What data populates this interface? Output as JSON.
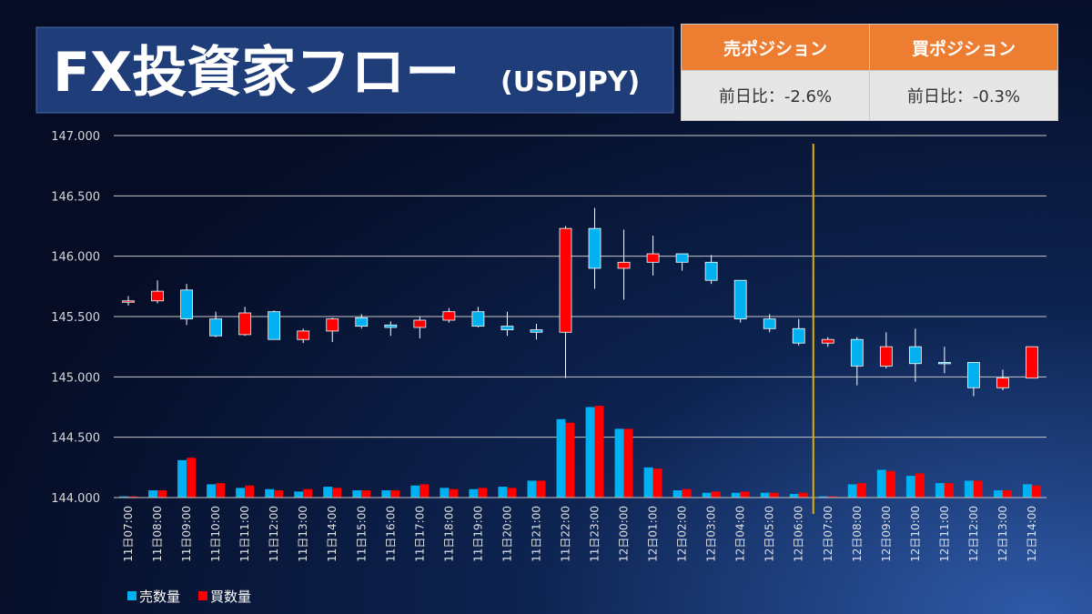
{
  "chart_data": {
    "type": "candlestick",
    "title": "FX投資家フロー",
    "subtitle": "(USDJPY)",
    "categories": [
      "11日07:00",
      "11日08:00",
      "11日09:00",
      "11日10:00",
      "11日11:00",
      "11日12:00",
      "11日13:00",
      "11日14:00",
      "11日15:00",
      "11日16:00",
      "11日17:00",
      "11日18:00",
      "11日19:00",
      "11日20:00",
      "11日21:00",
      "11日22:00",
      "11日23:00",
      "12日00:00",
      "12日01:00",
      "12日02:00",
      "12日03:00",
      "12日04:00",
      "12日05:00",
      "12日06:00",
      "12日07:00",
      "12日08:00",
      "12日09:00",
      "12日10:00",
      "12日11:00",
      "12日12:00",
      "12日13:00",
      "12日14:00"
    ],
    "candles": {
      "open": [
        145.62,
        145.63,
        145.72,
        145.48,
        145.35,
        145.54,
        145.31,
        145.38,
        145.49,
        145.43,
        145.41,
        145.47,
        145.54,
        145.42,
        145.39,
        145.37,
        146.23,
        145.9,
        145.95,
        146.02,
        145.95,
        145.8,
        145.48,
        145.4,
        145.28,
        145.31,
        145.09,
        145.25,
        145.12,
        145.12,
        144.91,
        144.99
      ],
      "close": [
        145.63,
        145.71,
        145.48,
        145.34,
        145.53,
        145.31,
        145.38,
        145.48,
        145.42,
        145.41,
        145.47,
        145.54,
        145.42,
        145.39,
        145.37,
        146.23,
        145.9,
        145.95,
        146.02,
        145.95,
        145.8,
        145.48,
        145.4,
        145.28,
        145.31,
        145.09,
        145.25,
        145.11,
        145.11,
        144.91,
        144.99,
        145.25
      ],
      "high": [
        145.67,
        145.8,
        145.77,
        145.54,
        145.58,
        145.55,
        145.4,
        145.49,
        145.52,
        145.46,
        145.5,
        145.57,
        145.58,
        145.54,
        145.44,
        146.25,
        146.4,
        146.22,
        146.17,
        146.02,
        146.01,
        145.8,
        145.52,
        145.48,
        145.33,
        145.33,
        145.37,
        145.4,
        145.25,
        145.12,
        145.06,
        145.25
      ],
      "low": [
        145.59,
        145.61,
        145.43,
        145.33,
        145.34,
        145.31,
        145.28,
        145.29,
        145.4,
        145.34,
        145.32,
        145.45,
        145.41,
        145.34,
        145.31,
        144.99,
        145.73,
        145.64,
        145.84,
        145.88,
        145.77,
        145.45,
        145.37,
        145.26,
        145.25,
        144.93,
        145.07,
        144.96,
        145.03,
        144.84,
        144.89,
        144.99
      ]
    },
    "up_color": "#ff0000",
    "down_color": "#00b0f0",
    "series": [
      {
        "name": "売数量",
        "color": "#00b0f0",
        "values": [
          0.01,
          0.06,
          0.31,
          0.11,
          0.08,
          0.07,
          0.05,
          0.09,
          0.06,
          0.06,
          0.1,
          0.08,
          0.07,
          0.09,
          0.14,
          0.65,
          0.75,
          0.57,
          0.25,
          0.06,
          0.04,
          0.04,
          0.04,
          0.03,
          0.01,
          0.11,
          0.23,
          0.18,
          0.12,
          0.14,
          0.06,
          0.11
        ]
      },
      {
        "name": "買数量",
        "color": "#ff0000",
        "values": [
          0.01,
          0.06,
          0.33,
          0.12,
          0.1,
          0.06,
          0.07,
          0.08,
          0.06,
          0.06,
          0.11,
          0.07,
          0.08,
          0.08,
          0.14,
          0.62,
          0.76,
          0.57,
          0.24,
          0.07,
          0.05,
          0.05,
          0.04,
          0.04,
          0.01,
          0.12,
          0.22,
          0.2,
          0.12,
          0.14,
          0.06,
          0.1
        ]
      }
    ],
    "ylim": [
      144,
      147
    ],
    "yticks": [
      {
        "value": 144,
        "label": "144.000"
      },
      {
        "value": 144.5,
        "label": "144.500"
      },
      {
        "value": 145,
        "label": "145.000"
      },
      {
        "value": 145.5,
        "label": "145.500"
      },
      {
        "value": 146,
        "label": "146.000"
      },
      {
        "value": 146.5,
        "label": "146.500"
      },
      {
        "value": 147,
        "label": "147.000"
      }
    ],
    "grid": true,
    "legend": "bottom-left"
  },
  "table": {
    "headers": [
      "売ポジション",
      "買ポジション"
    ],
    "rows": [
      [
        "前日比：-2.6%",
        "前日比：-0.3%"
      ]
    ]
  }
}
